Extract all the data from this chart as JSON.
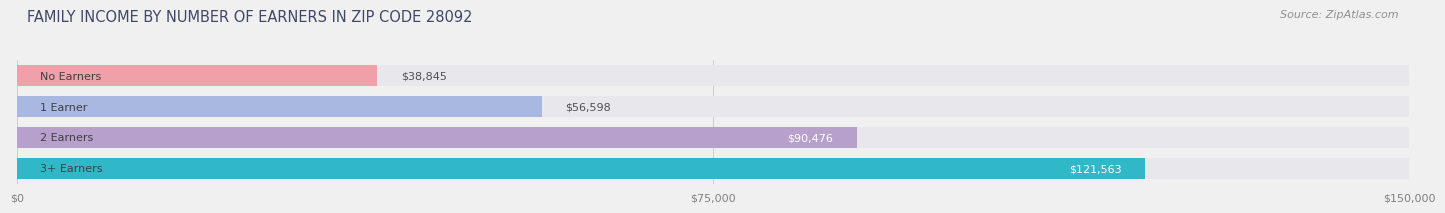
{
  "title": "FAMILY INCOME BY NUMBER OF EARNERS IN ZIP CODE 28092",
  "source_text": "Source: ZipAtlas.com",
  "categories": [
    "No Earners",
    "1 Earner",
    "2 Earners",
    "3+ Earners"
  ],
  "values": [
    38845,
    56598,
    90476,
    121563
  ],
  "value_labels": [
    "$38,845",
    "$56,598",
    "$90,476",
    "$121,563"
  ],
  "bar_colors": [
    "#f0a0a8",
    "#a8b8e0",
    "#b8a0cc",
    "#30b8c8"
  ],
  "bar_bg_color": "#e8e8ec",
  "label_colors": [
    "#505050",
    "#505050",
    "#ffffff",
    "#ffffff"
  ],
  "xlim": [
    0,
    150000
  ],
  "xtick_values": [
    0,
    75000,
    150000
  ],
  "xtick_labels": [
    "$0",
    "$75,000",
    "$150,000"
  ],
  "title_color": "#404868",
  "title_fontsize": 10.5,
  "source_fontsize": 8,
  "cat_label_fontsize": 8,
  "val_label_fontsize": 8,
  "tick_fontsize": 8,
  "background_color": "#f0f0f0",
  "bar_height": 0.68,
  "invert_y": true
}
